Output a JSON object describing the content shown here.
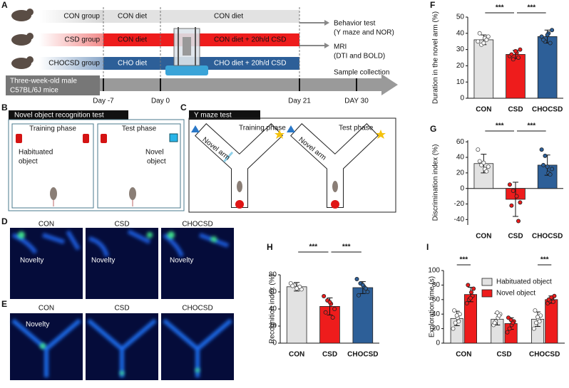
{
  "panels": {
    "a": {
      "label": "A",
      "groups": [
        {
          "name": "CON group",
          "stage1": "CON diet",
          "stage2": "CON diet"
        },
        {
          "name": "CSD group",
          "stage1": "CON diet",
          "stage2": "CON diet + 20h/d CSD"
        },
        {
          "name": "CHOCSD group",
          "stage1": "CHO diet",
          "stage2": "CHO diet + 20h/d CSD"
        }
      ],
      "outcomes": [
        [
          "Behavior test",
          "(Y maze and NOR)"
        ],
        [
          "MRI",
          "(DTI and BOLD)"
        ],
        [
          "Sample collection"
        ]
      ],
      "mice": [
        "Three-week-old male",
        "C57BL/6J mice"
      ],
      "days": [
        "Day -7",
        "Day 0",
        "Day 21",
        "DAY 30"
      ]
    },
    "b": {
      "label": "B",
      "title": "Novel object recognition test",
      "phases": [
        "Training phase",
        "Test phase"
      ],
      "objects": [
        [
          "Habituated",
          "object"
        ],
        [
          "Novel",
          "object"
        ]
      ]
    },
    "c": {
      "label": "C",
      "title": "Y maze test",
      "phases": [
        "Training phase",
        "Test phase"
      ],
      "arm": [
        "Novel arm",
        "Novel arm"
      ]
    },
    "d": {
      "label": "D",
      "groups": [
        "CON",
        "CSD",
        "CHOCSD"
      ],
      "zone": [
        "Novelty",
        "Novelty",
        "Novelty"
      ]
    },
    "e": {
      "label": "E",
      "groups": [
        "CON",
        "CSD",
        "CHOCSD"
      ],
      "zone": [
        "Novelty"
      ]
    }
  },
  "chart_data": [
    {
      "type": "bar",
      "panel": "F",
      "ylabel": "Duration in the novel arm (%)",
      "categories": [
        "CON",
        "CSD",
        "CHOCSD"
      ],
      "series": [
        {
          "colors": [
            "#e2e2e2",
            "#ee1c1c",
            "#2d5f98"
          ],
          "values": [
            36,
            27,
            38
          ],
          "errors": [
            3,
            2.5,
            4
          ],
          "points": [
            [
              35,
              33,
              37,
              38,
              40,
              36,
              34
            ],
            [
              26,
              24,
              28,
              30,
              27,
              25,
              29
            ],
            [
              38,
              35,
              40,
              42,
              36,
              34,
              39
            ]
          ]
        }
      ],
      "ylim": [
        0,
        50
      ],
      "yticks": [
        0,
        10,
        20,
        30,
        40,
        50
      ],
      "significance": [
        "***",
        "***"
      ]
    },
    {
      "type": "bar",
      "panel": "G",
      "ylabel": "Discrimination index (%)",
      "categories": [
        "CON",
        "CSD",
        "CHOCSD"
      ],
      "series": [
        {
          "colors": [
            "#e2e2e2",
            "#ee1c1c",
            "#2d5f98"
          ],
          "values": [
            32,
            -14,
            30
          ],
          "errors": [
            12,
            22,
            13
          ],
          "points": [
            [
              50,
              30,
              25,
              28,
              35,
              22,
              33
            ],
            [
              5,
              -3,
              -10,
              -18,
              -22,
              -42
            ],
            [
              50,
              42,
              20,
              25,
              30,
              18,
              28
            ]
          ]
        }
      ],
      "ylim": [
        -47,
        62
      ],
      "yticks": [
        -40,
        -20,
        0,
        20,
        40,
        60
      ],
      "significance": [
        "***",
        "***"
      ]
    },
    {
      "type": "bar",
      "panel": "H",
      "ylabel": "Recognition index (%)",
      "categories": [
        "CON",
        "CSD",
        "CHOCSD"
      ],
      "series": [
        {
          "colors": [
            "#e2e2e2",
            "#ee1c1c",
            "#2d5f98"
          ],
          "values": [
            66,
            43,
            65
          ],
          "errors": [
            5,
            10,
            7
          ],
          "points": [
            [
              70,
              68,
              65,
              63,
              67,
              66,
              64
            ],
            [
              55,
              50,
              46,
              40,
              36,
              30,
              48
            ],
            [
              75,
              70,
              66,
              60,
              56,
              64,
              68
            ]
          ]
        }
      ],
      "ylim": [
        0,
        80
      ],
      "yticks": [
        0,
        20,
        40,
        60,
        80
      ],
      "significance": [
        "***",
        "***"
      ]
    },
    {
      "type": "grouped-bar",
      "panel": "I",
      "ylabel": "Exploration time (s)",
      "categories": [
        "CON",
        "CSD",
        "CHOCSD"
      ],
      "series": [
        {
          "name": "Habituated object",
          "color": "#e2e2e2",
          "values": [
            34,
            33,
            33
          ],
          "errors": [
            10,
            8,
            10
          ],
          "points": [
            [
              20,
              28,
              35,
              40,
              45,
              30,
              38
            ],
            [
              25,
              30,
              35,
              40,
              28,
              38,
              42
            ],
            [
              20,
              28,
              33,
              38,
              45,
              30,
              36
            ]
          ]
        },
        {
          "name": "Novel object",
          "color": "#ee1c1c",
          "values": [
            67,
            27,
            60
          ],
          "errors": [
            10,
            8,
            5
          ],
          "points": [
            [
              55,
              60,
              70,
              75,
              80,
              65,
              62
            ],
            [
              15,
              20,
              25,
              30,
              35,
              28,
              32
            ],
            [
              55,
              58,
              62,
              65,
              60,
              57,
              63
            ]
          ]
        }
      ],
      "ylim": [
        0,
        100
      ],
      "yticks": [
        0,
        20,
        40,
        60,
        80,
        100
      ],
      "significance": [
        "***",
        null,
        "***"
      ]
    }
  ]
}
